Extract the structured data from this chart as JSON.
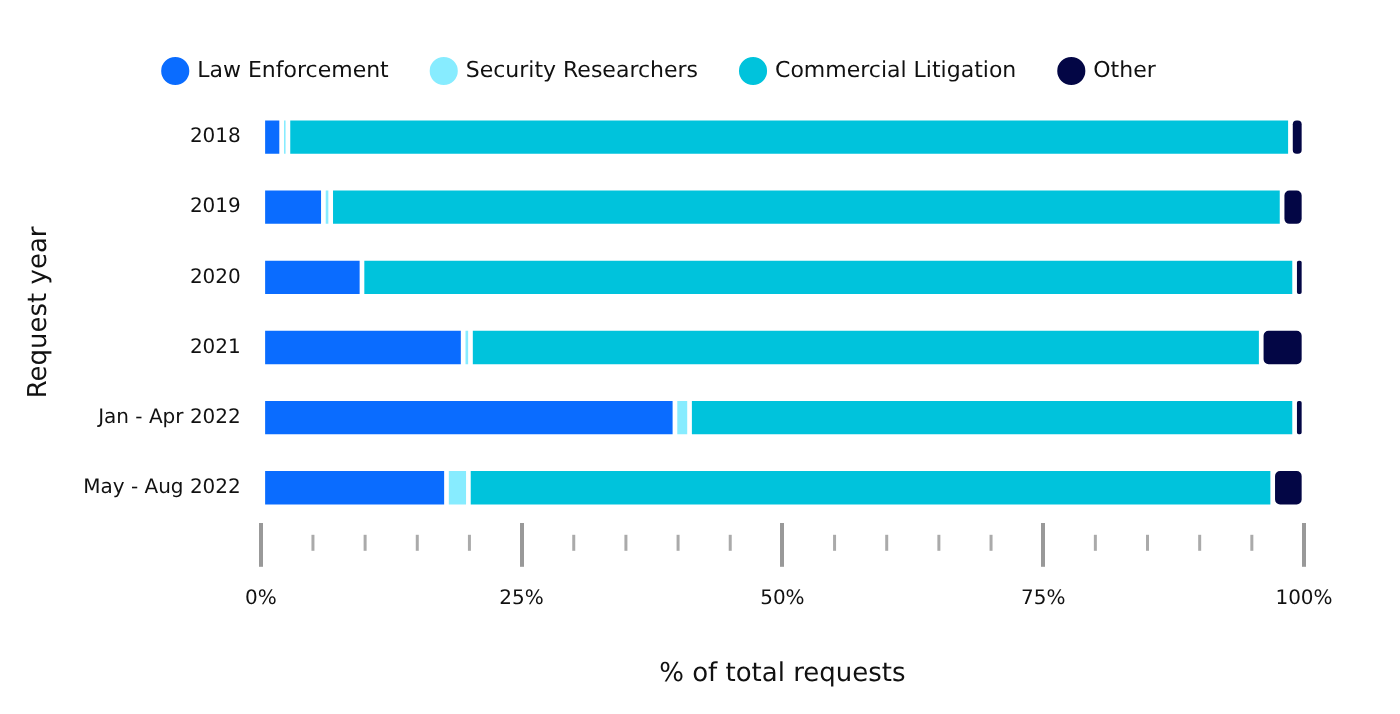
{
  "chart_data": {
    "type": "bar",
    "orientation": "horizontal",
    "stacked": true,
    "xlabel": "% of total requests",
    "ylabel": "Request year",
    "categories": [
      "2018",
      "2019",
      "2020",
      "2021",
      "Jan - Apr 2022",
      "May - Aug 2022"
    ],
    "series": [
      {
        "name": "Law Enforcement",
        "color": "#0a6cff",
        "values": [
          2,
          6,
          9.7,
          19.4,
          39.7,
          17.8
        ]
      },
      {
        "name": "Security Researchers",
        "color": "#87ecff",
        "values": [
          0.6,
          0.7,
          0,
          0.7,
          1.4,
          2.1
        ]
      },
      {
        "name": "Commercial Litigation",
        "color": "#00c3dc",
        "values": [
          96.1,
          91.2,
          89.4,
          75.8,
          58,
          77.1
        ]
      },
      {
        "name": "Other",
        "color": "#030645",
        "values": [
          1.3,
          2.1,
          0.9,
          4.1,
          0.9,
          3
        ]
      }
    ],
    "xlim": [
      0,
      100
    ],
    "xticks": [
      {
        "value": 0,
        "label": "0%"
      },
      {
        "value": 5,
        "label": null
      },
      {
        "value": 10,
        "label": null
      },
      {
        "value": 15,
        "label": null
      },
      {
        "value": 20,
        "label": null
      },
      {
        "value": 25,
        "label": "25%"
      },
      {
        "value": 30,
        "label": null
      },
      {
        "value": 35,
        "label": null
      },
      {
        "value": 40,
        "label": null
      },
      {
        "value": 45,
        "label": null
      },
      {
        "value": 50,
        "label": "50%"
      },
      {
        "value": 55,
        "label": null
      },
      {
        "value": 60,
        "label": null
      },
      {
        "value": 65,
        "label": null
      },
      {
        "value": 70,
        "label": null
      },
      {
        "value": 75,
        "label": "75%"
      },
      {
        "value": 80,
        "label": null
      },
      {
        "value": 85,
        "label": null
      },
      {
        "value": 90,
        "label": null
      },
      {
        "value": 95,
        "label": null
      },
      {
        "value": 100,
        "label": "100%"
      }
    ],
    "grid": false,
    "legend": "top"
  }
}
